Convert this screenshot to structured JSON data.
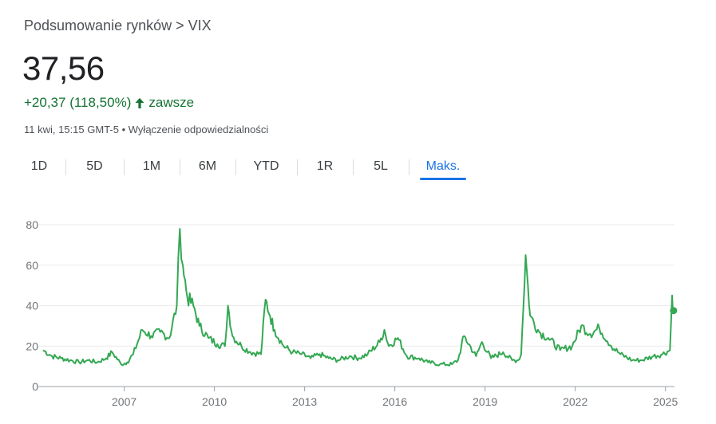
{
  "header": {
    "breadcrumb": "Podsumowanie rynków > VIX",
    "price": "37,56",
    "change": "+20,37 (118,50%)",
    "change_period": "zawsze",
    "timestamp": "11 kwi, 15:15 GMT-5",
    "disclaimer": "Wyłączenie odpowiedzialności"
  },
  "ranges": [
    {
      "label": "1D"
    },
    {
      "label": "5D"
    },
    {
      "label": "1M"
    },
    {
      "label": "6M"
    },
    {
      "label": "YTD"
    },
    {
      "label": "1R"
    },
    {
      "label": "5L"
    },
    {
      "label": "Maks.",
      "active": true
    }
  ],
  "colors": {
    "line": "#34a853",
    "positive": "#137333",
    "accent": "#1a73e8"
  },
  "chart_data": {
    "type": "line",
    "title": "",
    "xlabel": "",
    "ylabel": "",
    "ylim": [
      0,
      80
    ],
    "xlim": [
      2004.25,
      2025.3
    ],
    "yticks": [
      "0",
      "20",
      "40",
      "60",
      "80"
    ],
    "xticks": [
      "2007",
      "2010",
      "2013",
      "2016",
      "2019",
      "2022",
      "2025"
    ],
    "grid": true,
    "series": [
      {
        "x": [
          2004.3,
          2004.6,
          2004.9,
          2005.2,
          2005.5,
          2005.8,
          2006.1,
          2006.4,
          2006.6,
          2006.9,
          2007.1,
          2007.3,
          2007.6,
          2007.9,
          2008.2,
          2008.5,
          2008.75,
          2008.85,
          2008.95,
          2009.1,
          2009.3,
          2009.5,
          2009.8,
          2010.1,
          2010.35,
          2010.45,
          2010.6,
          2010.9,
          2011.2,
          2011.55,
          2011.7,
          2011.85,
          2012.0,
          2012.3,
          2012.6,
          2012.9,
          2013.2,
          2013.5,
          2013.8,
          2014.1,
          2014.5,
          2014.8,
          2015.1,
          2015.5,
          2015.65,
          2015.8,
          2016.1,
          2016.4,
          2016.8,
          2017.1,
          2017.5,
          2017.9,
          2018.1,
          2018.3,
          2018.7,
          2018.9,
          2019.2,
          2019.6,
          2019.9,
          2020.1,
          2020.2,
          2020.35,
          2020.5,
          2020.8,
          2021.1,
          2021.5,
          2021.9,
          2022.2,
          2022.5,
          2022.8,
          2023.2,
          2023.5,
          2023.9,
          2024.2,
          2024.6,
          2024.9,
          2025.15,
          2025.22,
          2025.27
        ],
        "y": [
          18,
          15,
          14,
          13,
          12,
          13,
          12,
          14,
          17,
          11,
          12,
          16,
          28,
          25,
          27,
          24,
          40,
          78,
          60,
          44,
          40,
          30,
          24,
          21,
          20,
          40,
          25,
          20,
          17,
          16,
          43,
          35,
          28,
          20,
          17,
          16,
          14,
          16,
          14,
          13,
          15,
          14,
          16,
          22,
          28,
          20,
          24,
          15,
          14,
          12,
          11,
          11,
          13,
          25,
          15,
          22,
          14,
          17,
          13,
          13,
          16,
          65,
          35,
          27,
          24,
          18,
          20,
          30,
          26,
          29,
          20,
          16,
          13,
          13,
          15,
          16,
          18,
          45,
          37.56
        ]
      }
    ]
  }
}
